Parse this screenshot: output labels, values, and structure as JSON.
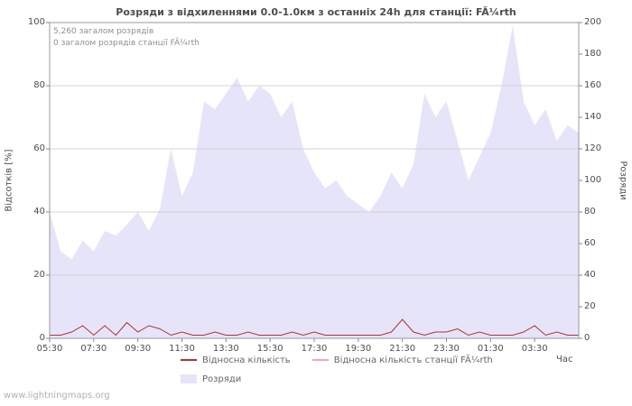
{
  "chart_data": {
    "type": "area",
    "title": "Розряди з відхиленнями 0.0-1.0км з останніх 24h для станції: FÃ¼rth",
    "xlabel": "Час",
    "left_axis": {
      "label": "Відсотків  [%]",
      "range": [
        0,
        100
      ],
      "ticks": [
        0,
        20,
        40,
        60,
        80,
        100
      ]
    },
    "right_axis": {
      "label": "Розряди",
      "range": [
        0,
        200
      ],
      "ticks": [
        0,
        20,
        40,
        60,
        80,
        100,
        120,
        140,
        160,
        180,
        200
      ]
    },
    "x_labels": [
      "05:30",
      "07:30",
      "09:30",
      "11:30",
      "13:30",
      "15:30",
      "17:30",
      "19:30",
      "21:30",
      "23:30",
      "01:30",
      "03:30"
    ],
    "x_label_every": 4,
    "grid": true,
    "annotations": {
      "total": "5,260 загалом розрядів",
      "station_total": "0 загалом розрядів станції FÃ¼rth"
    },
    "series": [
      {
        "name": "Розряди",
        "type": "area",
        "axis": "right",
        "color": "#e6e4f8",
        "values": [
          80,
          55,
          50,
          62,
          55,
          68,
          65,
          72,
          80,
          68,
          82,
          120,
          90,
          105,
          150,
          145,
          155,
          165,
          150,
          160,
          155,
          140,
          150,
          120,
          105,
          95,
          100,
          90,
          85,
          80,
          90,
          105,
          95,
          110,
          155,
          140,
          150,
          125,
          100,
          115,
          130,
          160,
          198,
          150,
          135,
          145,
          125,
          135,
          130
        ]
      },
      {
        "name": "Відносна кількість",
        "type": "line",
        "axis": "left",
        "color": "#b03333",
        "values": [
          1,
          1,
          2,
          4,
          1,
          4,
          1,
          5,
          2,
          4,
          3,
          1,
          2,
          1,
          1,
          2,
          1,
          1,
          2,
          1,
          1,
          1,
          2,
          1,
          2,
          1,
          1,
          1,
          1,
          1,
          1,
          2,
          6,
          2,
          1,
          2,
          2,
          3,
          1,
          2,
          1,
          1,
          1,
          2,
          4,
          1,
          2,
          1,
          1
        ]
      },
      {
        "name": "Відносна кількість станції FÃ¼rth",
        "type": "line",
        "axis": "left",
        "color": "#f2a9a9",
        "values": [
          0,
          0,
          0,
          0,
          0,
          0,
          0,
          0,
          0,
          0,
          0,
          0,
          0,
          0,
          0,
          0,
          0,
          0,
          0,
          0,
          0,
          0,
          0,
          0,
          0,
          0,
          0,
          0,
          0,
          0,
          0,
          0,
          0,
          0,
          0,
          0,
          0,
          0,
          0,
          0,
          0,
          0,
          0,
          0,
          0,
          0,
          0,
          0,
          0
        ]
      }
    ],
    "legend_position": "bottom",
    "watermark": "www.lightningmaps.org"
  }
}
